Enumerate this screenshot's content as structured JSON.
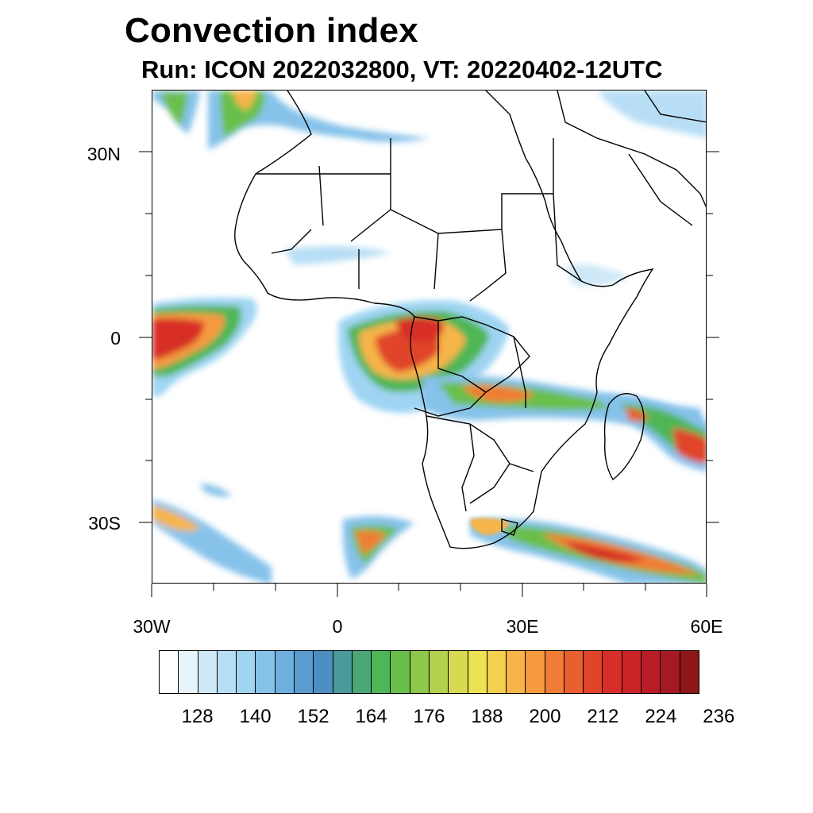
{
  "title": "Convection index",
  "subtitle": "Run: ICON 2022032800,  VT: 20220402-12UTC",
  "lat_labels": [
    "30N",
    "0",
    "30S"
  ],
  "lon_labels": [
    "30W",
    "0",
    "30E",
    "60E"
  ],
  "colorbar": {
    "labels": [
      "128",
      "140",
      "152",
      "164",
      "176",
      "188",
      "200",
      "212",
      "224",
      "236"
    ],
    "colors": [
      "#ffffff",
      "#e8f4fb",
      "#cfe8f7",
      "#b8def5",
      "#9fd4f3",
      "#86c2ea",
      "#6fafe0",
      "#5a9bd0",
      "#4d8fc0",
      "#4a9a9a",
      "#4aa876",
      "#4fb657",
      "#6abf4b",
      "#8dc74c",
      "#b4d14f",
      "#d6d951",
      "#ede352",
      "#f5cf4f",
      "#f6b44a",
      "#f59a40",
      "#f07d36",
      "#e8602e",
      "#e0452a",
      "#d72f28",
      "#c92428",
      "#b81d26",
      "#a51a22",
      "#8e1518"
    ]
  },
  "map": {
    "region": "Africa",
    "lon_range": [
      -30,
      60
    ],
    "lat_range": [
      -40,
      40
    ]
  }
}
